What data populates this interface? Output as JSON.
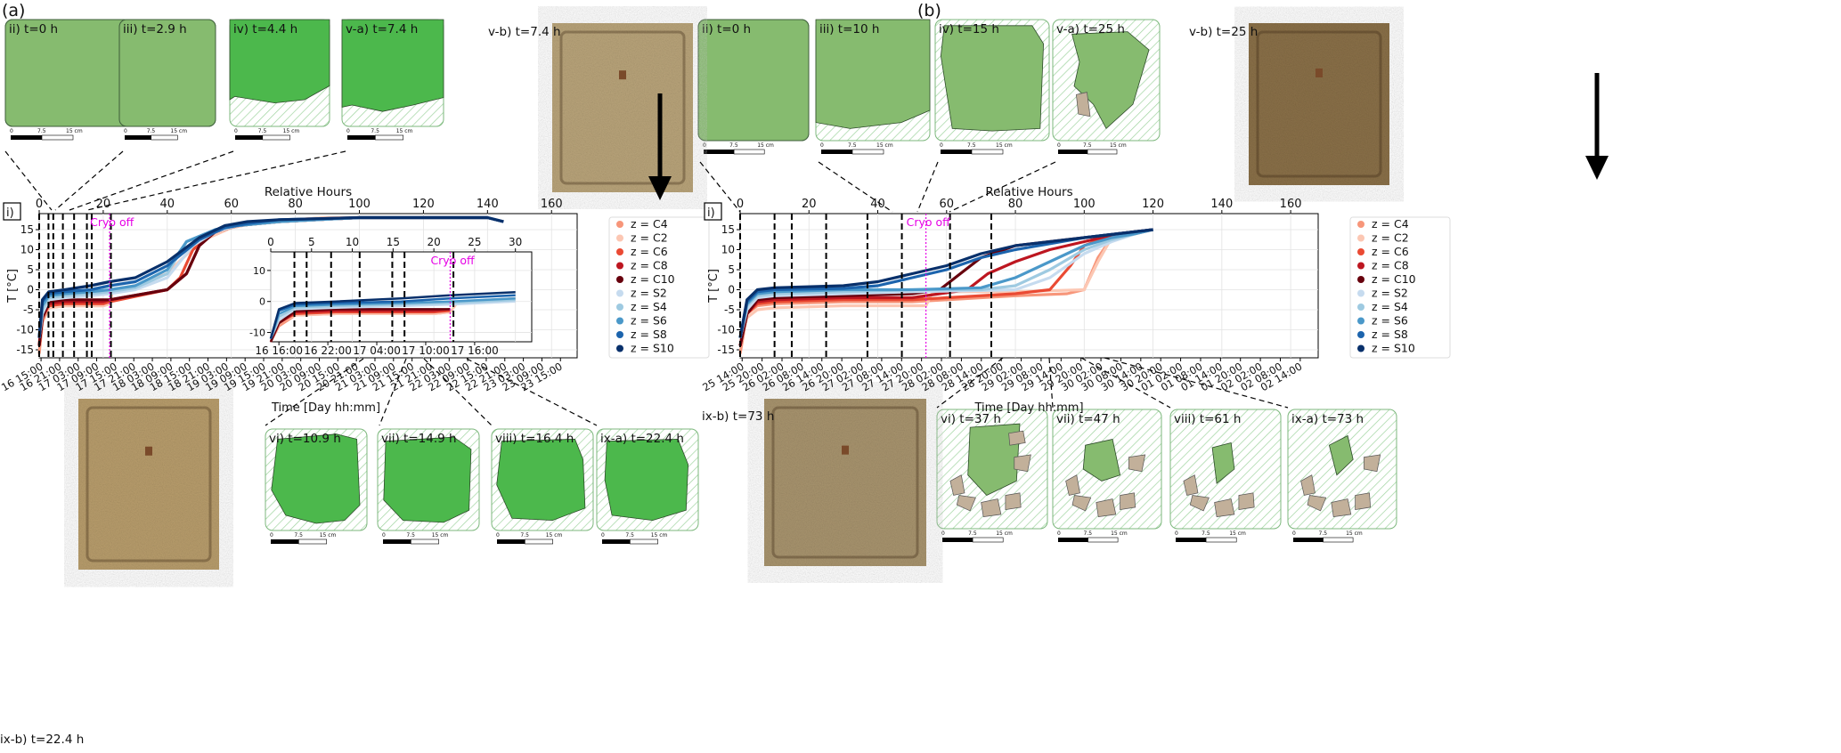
{
  "panels": [
    {
      "id": "a",
      "label": "(a)",
      "photos": [
        {
          "label": "v-b) t=7.4 h",
          "tone": "#b9a47a"
        },
        {
          "label": "ix-b) t=22.4 h",
          "tone": "#b89d6c"
        }
      ],
      "thumbs_top": [
        {
          "label": "ii) t=0 h",
          "green": "light",
          "scale": [
            "0",
            "7.5",
            "15 cm"
          ]
        },
        {
          "label": "iii) t=2.9 h",
          "green": "light",
          "scale": [
            "0",
            "7.5",
            "15 cm"
          ]
        },
        {
          "label": "iv) t=4.4 h",
          "green": "dark",
          "scale": [
            "0",
            "7.5",
            "15 cm"
          ]
        },
        {
          "label": "v-a) t=7.4 h",
          "green": "dark",
          "scale": [
            "0",
            "7.5",
            "15 cm"
          ]
        }
      ],
      "thumbs_bottom": [
        {
          "label": "vi) t=10.9 h",
          "green": "dark",
          "scale": [
            "0",
            "7.5",
            "15 cm"
          ]
        },
        {
          "label": "vii) t=14.9 h",
          "green": "dark",
          "scale": [
            "0",
            "7.5",
            "15 cm"
          ]
        },
        {
          "label": "viii) t=16.4 h",
          "green": "dark",
          "scale": [
            "0",
            "7.5",
            "15 cm"
          ]
        },
        {
          "label": "ix-a) t=22.4 h",
          "green": "dark",
          "scale": [
            "0",
            "7.5",
            "15 cm"
          ]
        }
      ]
    },
    {
      "id": "b",
      "label": "(b)",
      "photos": [
        {
          "label": "v-b) t=25 h",
          "tone": "#8a7048"
        },
        {
          "label": "ix-b) t=73 h",
          "tone": "#a8946e"
        }
      ],
      "thumbs_top": [
        {
          "label": "ii) t=0 h",
          "green": "light",
          "scale": [
            "0",
            "7.5",
            "15 cm"
          ]
        },
        {
          "label": "iii) t=10 h",
          "green": "light",
          "scale": [
            "0",
            "7.5",
            "15 cm"
          ]
        },
        {
          "label": "iv) t=15 h",
          "green": "light",
          "scale": [
            "0",
            "7.5",
            "15 cm"
          ]
        },
        {
          "label": "v-a) t=25 h",
          "green": "light",
          "scale": [
            "0",
            "7.5",
            "15 cm"
          ]
        }
      ],
      "thumbs_bottom": [
        {
          "label": "vi) t=37 h",
          "green": "light",
          "scale": [
            "0",
            "7.5",
            "15 cm"
          ]
        },
        {
          "label": "vii) t=47 h",
          "green": "light",
          "scale": [
            "0",
            "7.5",
            "15 cm"
          ]
        },
        {
          "label": "viii) t=61 h",
          "green": "light",
          "scale": [
            "0",
            "7.5",
            "15 cm"
          ]
        },
        {
          "label": "ix-a) t=73 h",
          "green": "light",
          "scale": [
            "0",
            "7.5",
            "15 cm"
          ]
        }
      ]
    }
  ],
  "colors": {
    "green_light": "#86bb6f",
    "green_dark": "#4cb84c",
    "hatch": "#8fce8f",
    "debris": "#c2b09a",
    "cryo": "#e600e6"
  },
  "chart_data": [
    {
      "id": "a-main",
      "type": "line",
      "panel_label": "i)",
      "top_xlabel": "Relative Hours",
      "top_ticks": [
        0,
        20,
        40,
        60,
        80,
        100,
        120,
        140,
        160
      ],
      "xlim": [
        0,
        168
      ],
      "ylabel": "T [°C]",
      "ylim": [
        -17,
        19
      ],
      "yticks": [
        -15,
        -10,
        -5,
        0,
        5,
        10,
        15
      ],
      "xlabel": "Time [Day hh:mm]",
      "date_ticks": [
        "16 15:00",
        "16 21:00",
        "17 03:00",
        "17 09:00",
        "17 15:00",
        "17 21:00",
        "18 03:00",
        "18 09:00",
        "18 15:00",
        "18 21:00",
        "19 03:00",
        "19 09:00",
        "19 15:00",
        "19 21:00",
        "20 03:00",
        "20 09:00",
        "20 15:00",
        "20 21:00",
        "21 03:00",
        "21 09:00",
        "21 15:00",
        "21 21:00",
        "22 03:00",
        "22 09:00",
        "22 15:00",
        "22 21:00",
        "23 03:00",
        "23 09:00",
        "23 15:00"
      ],
      "events_hours": [
        0,
        2.9,
        4.4,
        7.4,
        10.9,
        14.9,
        16.4,
        22.4
      ],
      "cryo_label": "Cryo off",
      "cryo_hours": 22,
      "series": [
        {
          "name": "z = C4",
          "color": "#f7967a",
          "x": [
            0,
            1,
            3,
            8,
            16,
            20,
            22,
            23,
            30,
            40,
            50,
            60,
            70,
            90,
            120,
            140,
            145
          ],
          "y": [
            -16,
            -8,
            -4.5,
            -4,
            -4,
            -4,
            -3.5,
            0,
            1,
            4,
            12,
            15.5,
            17,
            18,
            18,
            18,
            17
          ]
        },
        {
          "name": "z = C2",
          "color": "#fcc7b3",
          "x": [
            0,
            1,
            3,
            8,
            16,
            20,
            22,
            23,
            30,
            40,
            50,
            60,
            70,
            90,
            120,
            140,
            145
          ],
          "y": [
            -13,
            -7,
            -4.5,
            -4,
            -4,
            -4,
            -3.5,
            0,
            1,
            4,
            12,
            15.5,
            17,
            18,
            18,
            18,
            17
          ]
        },
        {
          "name": "z = C6",
          "color": "#ea4a33",
          "x": [
            0,
            1,
            3,
            8,
            16,
            20,
            22,
            40,
            44,
            48,
            55,
            62,
            75,
            100,
            140,
            145
          ],
          "y": [
            -14,
            -7,
            -4,
            -3.5,
            -3.5,
            -3.5,
            -3,
            0,
            3,
            10,
            14.5,
            16,
            17,
            18,
            18,
            17
          ]
        },
        {
          "name": "z = C8",
          "color": "#bd1620",
          "x": [
            0,
            1,
            3,
            8,
            16,
            20,
            22,
            40,
            46,
            50,
            55,
            62,
            75,
            100,
            140,
            145
          ],
          "y": [
            -14,
            -7,
            -3.5,
            -3,
            -3,
            -3,
            -2.5,
            0,
            4,
            11,
            14.5,
            16,
            17,
            18,
            18,
            17
          ]
        },
        {
          "name": "z = C10",
          "color": "#67000d",
          "x": [
            0,
            1,
            3,
            8,
            16,
            22,
            40,
            46,
            50,
            55,
            62,
            75,
            100,
            140,
            145
          ],
          "y": [
            -14,
            -7,
            -3,
            -2.5,
            -2.5,
            -2.5,
            0,
            4,
            11,
            14.5,
            16,
            17,
            18,
            18,
            17
          ]
        },
        {
          "name": "z = S2",
          "color": "#c6dbef",
          "x": [
            0,
            1,
            3,
            8,
            16,
            22,
            30,
            40,
            48,
            55,
            62,
            75,
            100,
            140,
            145
          ],
          "y": [
            -12,
            -6,
            -2.5,
            -2,
            -1.5,
            -1,
            0,
            3,
            11,
            14.5,
            16,
            17,
            18,
            18,
            17
          ]
        },
        {
          "name": "z = S4",
          "color": "#9ecae1",
          "x": [
            0,
            1,
            3,
            8,
            16,
            22,
            30,
            40,
            46,
            55,
            62,
            75,
            100,
            140,
            145
          ],
          "y": [
            -12,
            -5,
            -2,
            -1.5,
            -1,
            -0.5,
            0.5,
            4,
            12,
            15,
            16,
            17,
            18,
            18,
            17
          ]
        },
        {
          "name": "z = S6",
          "color": "#4a98c9",
          "x": [
            0,
            1,
            3,
            8,
            16,
            22,
            30,
            40,
            46,
            55,
            62,
            75,
            100,
            140,
            145
          ],
          "y": [
            -12,
            -4,
            -1.5,
            -1,
            -0.5,
            0,
            1,
            5,
            12,
            15,
            16,
            17,
            18,
            18,
            17
          ]
        },
        {
          "name": "z = S8",
          "color": "#1c64ad",
          "x": [
            0,
            1,
            3,
            8,
            16,
            22,
            30,
            40,
            50,
            58,
            65,
            75,
            100,
            140,
            145
          ],
          "y": [
            -12,
            -3,
            -1,
            -0.5,
            0,
            1,
            2,
            6,
            12.5,
            15.5,
            16.5,
            17.5,
            18,
            18,
            17
          ]
        },
        {
          "name": "z = S10",
          "color": "#08306b",
          "x": [
            0,
            1,
            3,
            8,
            16,
            22,
            30,
            40,
            50,
            58,
            65,
            75,
            100,
            140,
            145
          ],
          "y": [
            -12,
            -2.5,
            -0.5,
            0,
            1,
            2,
            3,
            7,
            13,
            16,
            17,
            17.5,
            18,
            18,
            17
          ]
        }
      ],
      "legend": "right"
    },
    {
      "id": "a-inset",
      "type": "line",
      "top_ticks": [
        0,
        5,
        10,
        15,
        20,
        25,
        30
      ],
      "xlim": [
        0,
        32
      ],
      "ylim": [
        -13,
        16
      ],
      "yticks": [
        -10,
        0,
        10
      ],
      "date_ticks": [
        "16 16:00",
        "16 22:00",
        "17 04:00",
        "17 10:00",
        "17 16:00"
      ],
      "events_hours": [
        2.9,
        4.4,
        7.4,
        10.9,
        14.9,
        16.4,
        22.4
      ],
      "cryo_label": "Cryo off",
      "cryo_hours": 22,
      "series_from": "a-main"
    },
    {
      "id": "b-main",
      "type": "line",
      "panel_label": "i)",
      "top_xlabel": "Relative Hours",
      "top_ticks": [
        0,
        20,
        40,
        60,
        80,
        100,
        120,
        140,
        160
      ],
      "xlim": [
        0,
        168
      ],
      "ylabel": "T [°C]",
      "ylim": [
        -17,
        19
      ],
      "yticks": [
        -15,
        -10,
        -5,
        0,
        5,
        10,
        15
      ],
      "xlabel": "Time [Day hh:mm]",
      "date_ticks": [
        "25 14:00",
        "25 20:00",
        "26 02:00",
        "26 08:00",
        "26 14:00",
        "26 20:00",
        "27 02:00",
        "27 08:00",
        "27 14:00",
        "27 20:00",
        "28 02:00",
        "28 08:00",
        "28 14:00",
        "28 20:00",
        "29 02:00",
        "29 08:00",
        "29 14:00",
        "29 20:00",
        "30 02:00",
        "30 08:00",
        "30 14:00",
        "30 20:00",
        "01 02:00",
        "01 08:00",
        "01 14:00",
        "01 20:00",
        "02 02:00",
        "02 08:00",
        "02 14:00"
      ],
      "events_hours": [
        0,
        10,
        15,
        25,
        37,
        47,
        61,
        73
      ],
      "cryo_label": "Cryo off",
      "cryo_hours": 54,
      "series": [
        {
          "name": "z = C4",
          "color": "#f7967a",
          "x": [
            0,
            2,
            5,
            10,
            30,
            50,
            60,
            80,
            95,
            100,
            104,
            108,
            115,
            120
          ],
          "y": [
            -16,
            -6,
            -4,
            -3.5,
            -3,
            -3,
            -2.5,
            -1.5,
            -1,
            0,
            8,
            13,
            14,
            15
          ]
        },
        {
          "name": "z = C2",
          "color": "#fcc7b3",
          "x": [
            0,
            2,
            5,
            10,
            30,
            54,
            56,
            80,
            100,
            104,
            108,
            115,
            120
          ],
          "y": [
            -14,
            -7,
            -5,
            -4.5,
            -4,
            -4,
            -0.5,
            -0.5,
            0,
            7,
            13,
            14,
            15
          ]
        },
        {
          "name": "z = C6",
          "color": "#ea4a33",
          "x": [
            0,
            2,
            5,
            10,
            30,
            50,
            60,
            80,
            90,
            96,
            100,
            106,
            115,
            120
          ],
          "y": [
            -14,
            -6,
            -3.5,
            -3,
            -2.5,
            -2.5,
            -2,
            -1,
            0,
            6,
            11,
            13,
            14,
            15
          ]
        },
        {
          "name": "z = C8",
          "color": "#bd1620",
          "x": [
            0,
            2,
            5,
            10,
            30,
            50,
            66,
            72,
            80,
            90,
            100,
            110,
            120
          ],
          "y": [
            -14,
            -6,
            -3,
            -2.5,
            -2,
            -2,
            0,
            4,
            7,
            10,
            12,
            14,
            15
          ]
        },
        {
          "name": "z = C10",
          "color": "#67000d",
          "x": [
            0,
            2,
            5,
            10,
            30,
            50,
            58,
            64,
            70,
            80,
            90,
            100,
            110,
            120
          ],
          "y": [
            -14,
            -6,
            -2.5,
            -2,
            -1.5,
            -1,
            0,
            4,
            8,
            11,
            12,
            13,
            14,
            15
          ]
        },
        {
          "name": "z = S2",
          "color": "#c6dbef",
          "x": [
            0,
            2,
            5,
            10,
            30,
            50,
            70,
            80,
            90,
            100,
            108,
            115,
            120
          ],
          "y": [
            -12,
            -5,
            -2,
            -1.5,
            -1,
            -0.5,
            -0.2,
            0,
            3,
            9,
            12,
            14,
            15
          ]
        },
        {
          "name": "z = S4",
          "color": "#9ecae1",
          "x": [
            0,
            2,
            5,
            10,
            30,
            50,
            70,
            80,
            90,
            100,
            108,
            115,
            120
          ],
          "y": [
            -12,
            -4,
            -1.5,
            -1,
            -0.5,
            0,
            0,
            1,
            5,
            10,
            12.5,
            14,
            15
          ]
        },
        {
          "name": "z = S6",
          "color": "#4a98c9",
          "x": [
            0,
            2,
            5,
            10,
            30,
            50,
            70,
            80,
            90,
            100,
            108,
            115,
            120
          ],
          "y": [
            -12,
            -3.5,
            -1,
            -0.5,
            0,
            0,
            0.5,
            3,
            7,
            11,
            13,
            14,
            15
          ]
        },
        {
          "name": "z = S8",
          "color": "#1c64ad",
          "x": [
            0,
            2,
            5,
            10,
            30,
            40,
            50,
            60,
            70,
            80,
            90,
            100,
            110,
            120
          ],
          "y": [
            -12,
            -3,
            -0.5,
            0,
            0.3,
            1,
            3,
            5,
            8,
            10,
            11.5,
            13,
            14,
            15
          ]
        },
        {
          "name": "z = S10",
          "color": "#08306b",
          "x": [
            0,
            2,
            5,
            10,
            30,
            40,
            50,
            60,
            70,
            80,
            90,
            100,
            110,
            120
          ],
          "y": [
            -12,
            -2.5,
            0,
            0.5,
            1,
            2,
            4,
            6,
            9,
            11,
            12,
            13,
            14,
            15
          ]
        }
      ],
      "legend": "right"
    }
  ]
}
